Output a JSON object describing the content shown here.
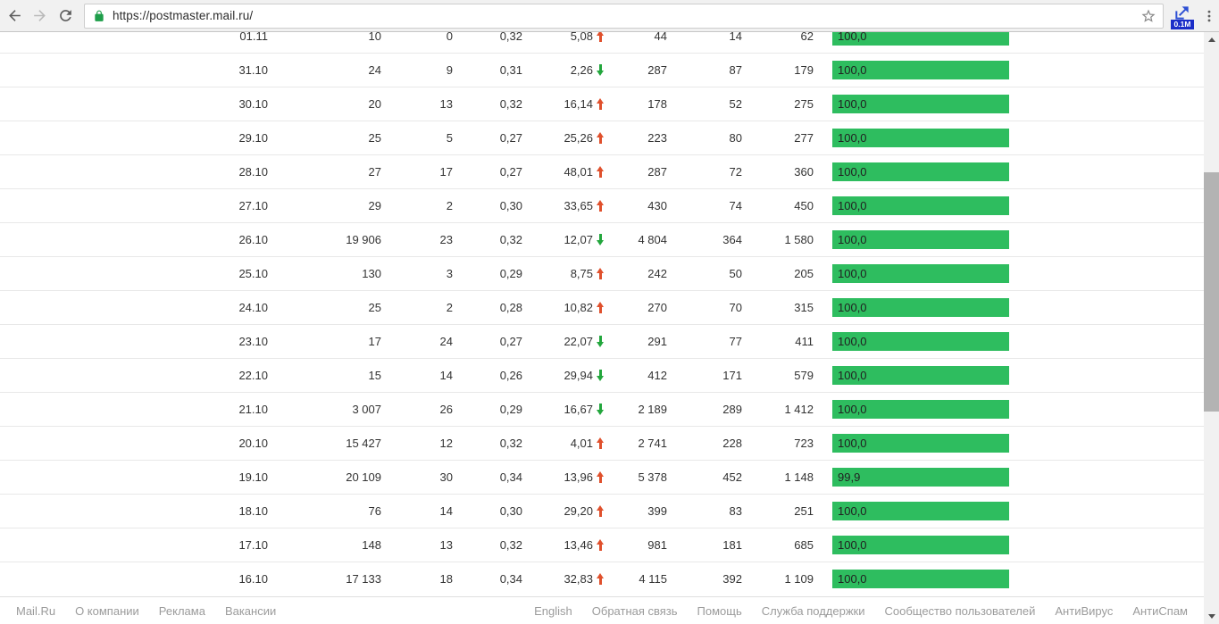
{
  "browser": {
    "url": "https://postmaster.mail.ru/",
    "extension_badge": "0.1M"
  },
  "colors": {
    "bar_green": "#2ebd5f",
    "arrow_up": "#e0502c",
    "arrow_down": "#22a63c"
  },
  "chart_data": {
    "type": "table",
    "columns": [
      "date",
      "col1",
      "col2",
      "col3",
      "delta_pct",
      "trend",
      "col5",
      "col6",
      "col7",
      "bar_pct"
    ],
    "rows_note": "daily mail statistics with green delivery-rate bars"
  },
  "table": {
    "rows": [
      {
        "date": "01.11",
        "col1": "10",
        "col2": "0",
        "col3": "0,32",
        "delta": "5,08",
        "trend": "up",
        "col5": "44",
        "col6": "14",
        "col7": "62",
        "bar_label": "100,0",
        "bar_pct": 100.0
      },
      {
        "date": "31.10",
        "col1": "24",
        "col2": "9",
        "col3": "0,31",
        "delta": "2,26",
        "trend": "down",
        "col5": "287",
        "col6": "87",
        "col7": "179",
        "bar_label": "100,0",
        "bar_pct": 100.0
      },
      {
        "date": "30.10",
        "col1": "20",
        "col2": "13",
        "col3": "0,32",
        "delta": "16,14",
        "trend": "up",
        "col5": "178",
        "col6": "52",
        "col7": "275",
        "bar_label": "100,0",
        "bar_pct": 100.0
      },
      {
        "date": "29.10",
        "col1": "25",
        "col2": "5",
        "col3": "0,27",
        "delta": "25,26",
        "trend": "up",
        "col5": "223",
        "col6": "80",
        "col7": "277",
        "bar_label": "100,0",
        "bar_pct": 100.0
      },
      {
        "date": "28.10",
        "col1": "27",
        "col2": "17",
        "col3": "0,27",
        "delta": "48,01",
        "trend": "up",
        "col5": "287",
        "col6": "72",
        "col7": "360",
        "bar_label": "100,0",
        "bar_pct": 100.0
      },
      {
        "date": "27.10",
        "col1": "29",
        "col2": "2",
        "col3": "0,30",
        "delta": "33,65",
        "trend": "up",
        "col5": "430",
        "col6": "74",
        "col7": "450",
        "bar_label": "100,0",
        "bar_pct": 100.0
      },
      {
        "date": "26.10",
        "col1": "19 906",
        "col2": "23",
        "col3": "0,32",
        "delta": "12,07",
        "trend": "down",
        "col5": "4 804",
        "col6": "364",
        "col7": "1 580",
        "bar_label": "100,0",
        "bar_pct": 100.0
      },
      {
        "date": "25.10",
        "col1": "130",
        "col2": "3",
        "col3": "0,29",
        "delta": "8,75",
        "trend": "up",
        "col5": "242",
        "col6": "50",
        "col7": "205",
        "bar_label": "100,0",
        "bar_pct": 100.0
      },
      {
        "date": "24.10",
        "col1": "25",
        "col2": "2",
        "col3": "0,28",
        "delta": "10,82",
        "trend": "up",
        "col5": "270",
        "col6": "70",
        "col7": "315",
        "bar_label": "100,0",
        "bar_pct": 100.0
      },
      {
        "date": "23.10",
        "col1": "17",
        "col2": "24",
        "col3": "0,27",
        "delta": "22,07",
        "trend": "down",
        "col5": "291",
        "col6": "77",
        "col7": "411",
        "bar_label": "100,0",
        "bar_pct": 100.0
      },
      {
        "date": "22.10",
        "col1": "15",
        "col2": "14",
        "col3": "0,26",
        "delta": "29,94",
        "trend": "down",
        "col5": "412",
        "col6": "171",
        "col7": "579",
        "bar_label": "100,0",
        "bar_pct": 100.0
      },
      {
        "date": "21.10",
        "col1": "3 007",
        "col2": "26",
        "col3": "0,29",
        "delta": "16,67",
        "trend": "down",
        "col5": "2 189",
        "col6": "289",
        "col7": "1 412",
        "bar_label": "100,0",
        "bar_pct": 100.0
      },
      {
        "date": "20.10",
        "col1": "15 427",
        "col2": "12",
        "col3": "0,32",
        "delta": "4,01",
        "trend": "up",
        "col5": "2 741",
        "col6": "228",
        "col7": "723",
        "bar_label": "100,0",
        "bar_pct": 100.0
      },
      {
        "date": "19.10",
        "col1": "20 109",
        "col2": "30",
        "col3": "0,34",
        "delta": "13,96",
        "trend": "up",
        "col5": "5 378",
        "col6": "452",
        "col7": "1 148",
        "bar_label": "99,9",
        "bar_pct": 99.9
      },
      {
        "date": "18.10",
        "col1": "76",
        "col2": "14",
        "col3": "0,30",
        "delta": "29,20",
        "trend": "up",
        "col5": "399",
        "col6": "83",
        "col7": "251",
        "bar_label": "100,0",
        "bar_pct": 100.0
      },
      {
        "date": "17.10",
        "col1": "148",
        "col2": "13",
        "col3": "0,32",
        "delta": "13,46",
        "trend": "up",
        "col5": "981",
        "col6": "181",
        "col7": "685",
        "bar_label": "100,0",
        "bar_pct": 100.0
      },
      {
        "date": "16.10",
        "col1": "17 133",
        "col2": "18",
        "col3": "0,34",
        "delta": "32,83",
        "trend": "up",
        "col5": "4 115",
        "col6": "392",
        "col7": "1 109",
        "bar_label": "100,0",
        "bar_pct": 100.0
      }
    ]
  },
  "footer": {
    "left_links": [
      "Mail.Ru",
      "О компании",
      "Реклама",
      "Вакансии"
    ],
    "right_links": [
      "English",
      "Обратная связь",
      "Помощь",
      "Служба поддержки",
      "Сообщество пользователей",
      "АнтиВирус",
      "АнтиСпам"
    ]
  }
}
